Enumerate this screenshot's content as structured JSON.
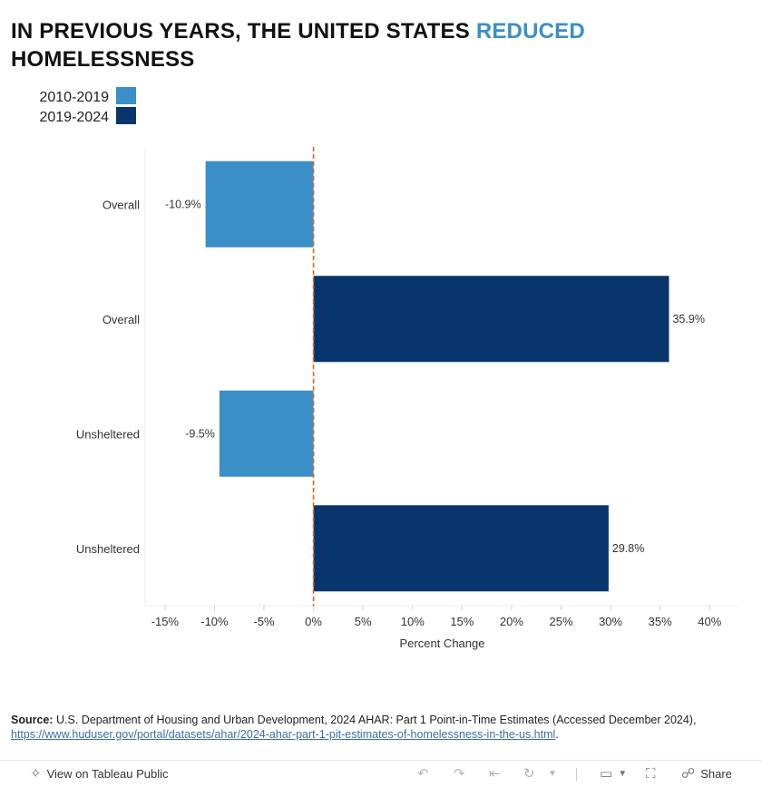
{
  "title": {
    "part1": "IN PREVIOUS YEARS, THE UNITED STATES ",
    "highlight": "REDUCED",
    "part2": "HOMELESSNESS"
  },
  "colors": {
    "series_2010_2019": "#3a8fc9",
    "series_2019_2024": "#08356b",
    "zero_line": "#e0641a",
    "highlight": "#3a8fc9"
  },
  "legend": [
    {
      "label": "2010-2019",
      "color": "#3a8fc9"
    },
    {
      "label": "2019-2024",
      "color": "#08356b"
    }
  ],
  "chart_data": {
    "type": "bar",
    "orientation": "horizontal",
    "categories": [
      "Overall",
      "Overall",
      "Unsheltered",
      "Unsheltered"
    ],
    "series_of_bar": [
      "2010-2019",
      "2019-2024",
      "2010-2019",
      "2019-2024"
    ],
    "values": [
      -10.9,
      35.9,
      -9.5,
      29.8
    ],
    "value_labels": [
      "-10.9%",
      "35.9%",
      "-9.5%",
      "29.8%"
    ],
    "xlabel": "Percent Change",
    "xlim": [
      -17,
      43
    ],
    "xticks": [
      -15,
      -10,
      -5,
      0,
      5,
      10,
      15,
      20,
      25,
      30,
      35,
      40
    ],
    "xtick_labels": [
      "-15%",
      "-10%",
      "-5%",
      "0%",
      "5%",
      "10%",
      "15%",
      "20%",
      "25%",
      "30%",
      "35%",
      "40%"
    ],
    "reference_line": 0,
    "legend_position": "top-left",
    "grid": false
  },
  "source": {
    "label": "Source:",
    "text": " U.S. Department of Housing and Urban Development, 2024 AHAR: Part 1 Point-in-Time Estimates (Accessed December 2024),",
    "link": "https://www.huduser.gov/portal/datasets/ahar/2024-ahar-part-1-pit-estimates-of-homelessness-in-the-us.html",
    "end": "."
  },
  "toolbar": {
    "view_label": "View on Tableau Public",
    "share_label": "Share",
    "icons": [
      "tableau-icon",
      "undo-icon",
      "redo-icon",
      "revert-icon",
      "refresh-icon",
      "pause-icon",
      "download-icon",
      "fullscreen-icon",
      "share-icon"
    ]
  }
}
